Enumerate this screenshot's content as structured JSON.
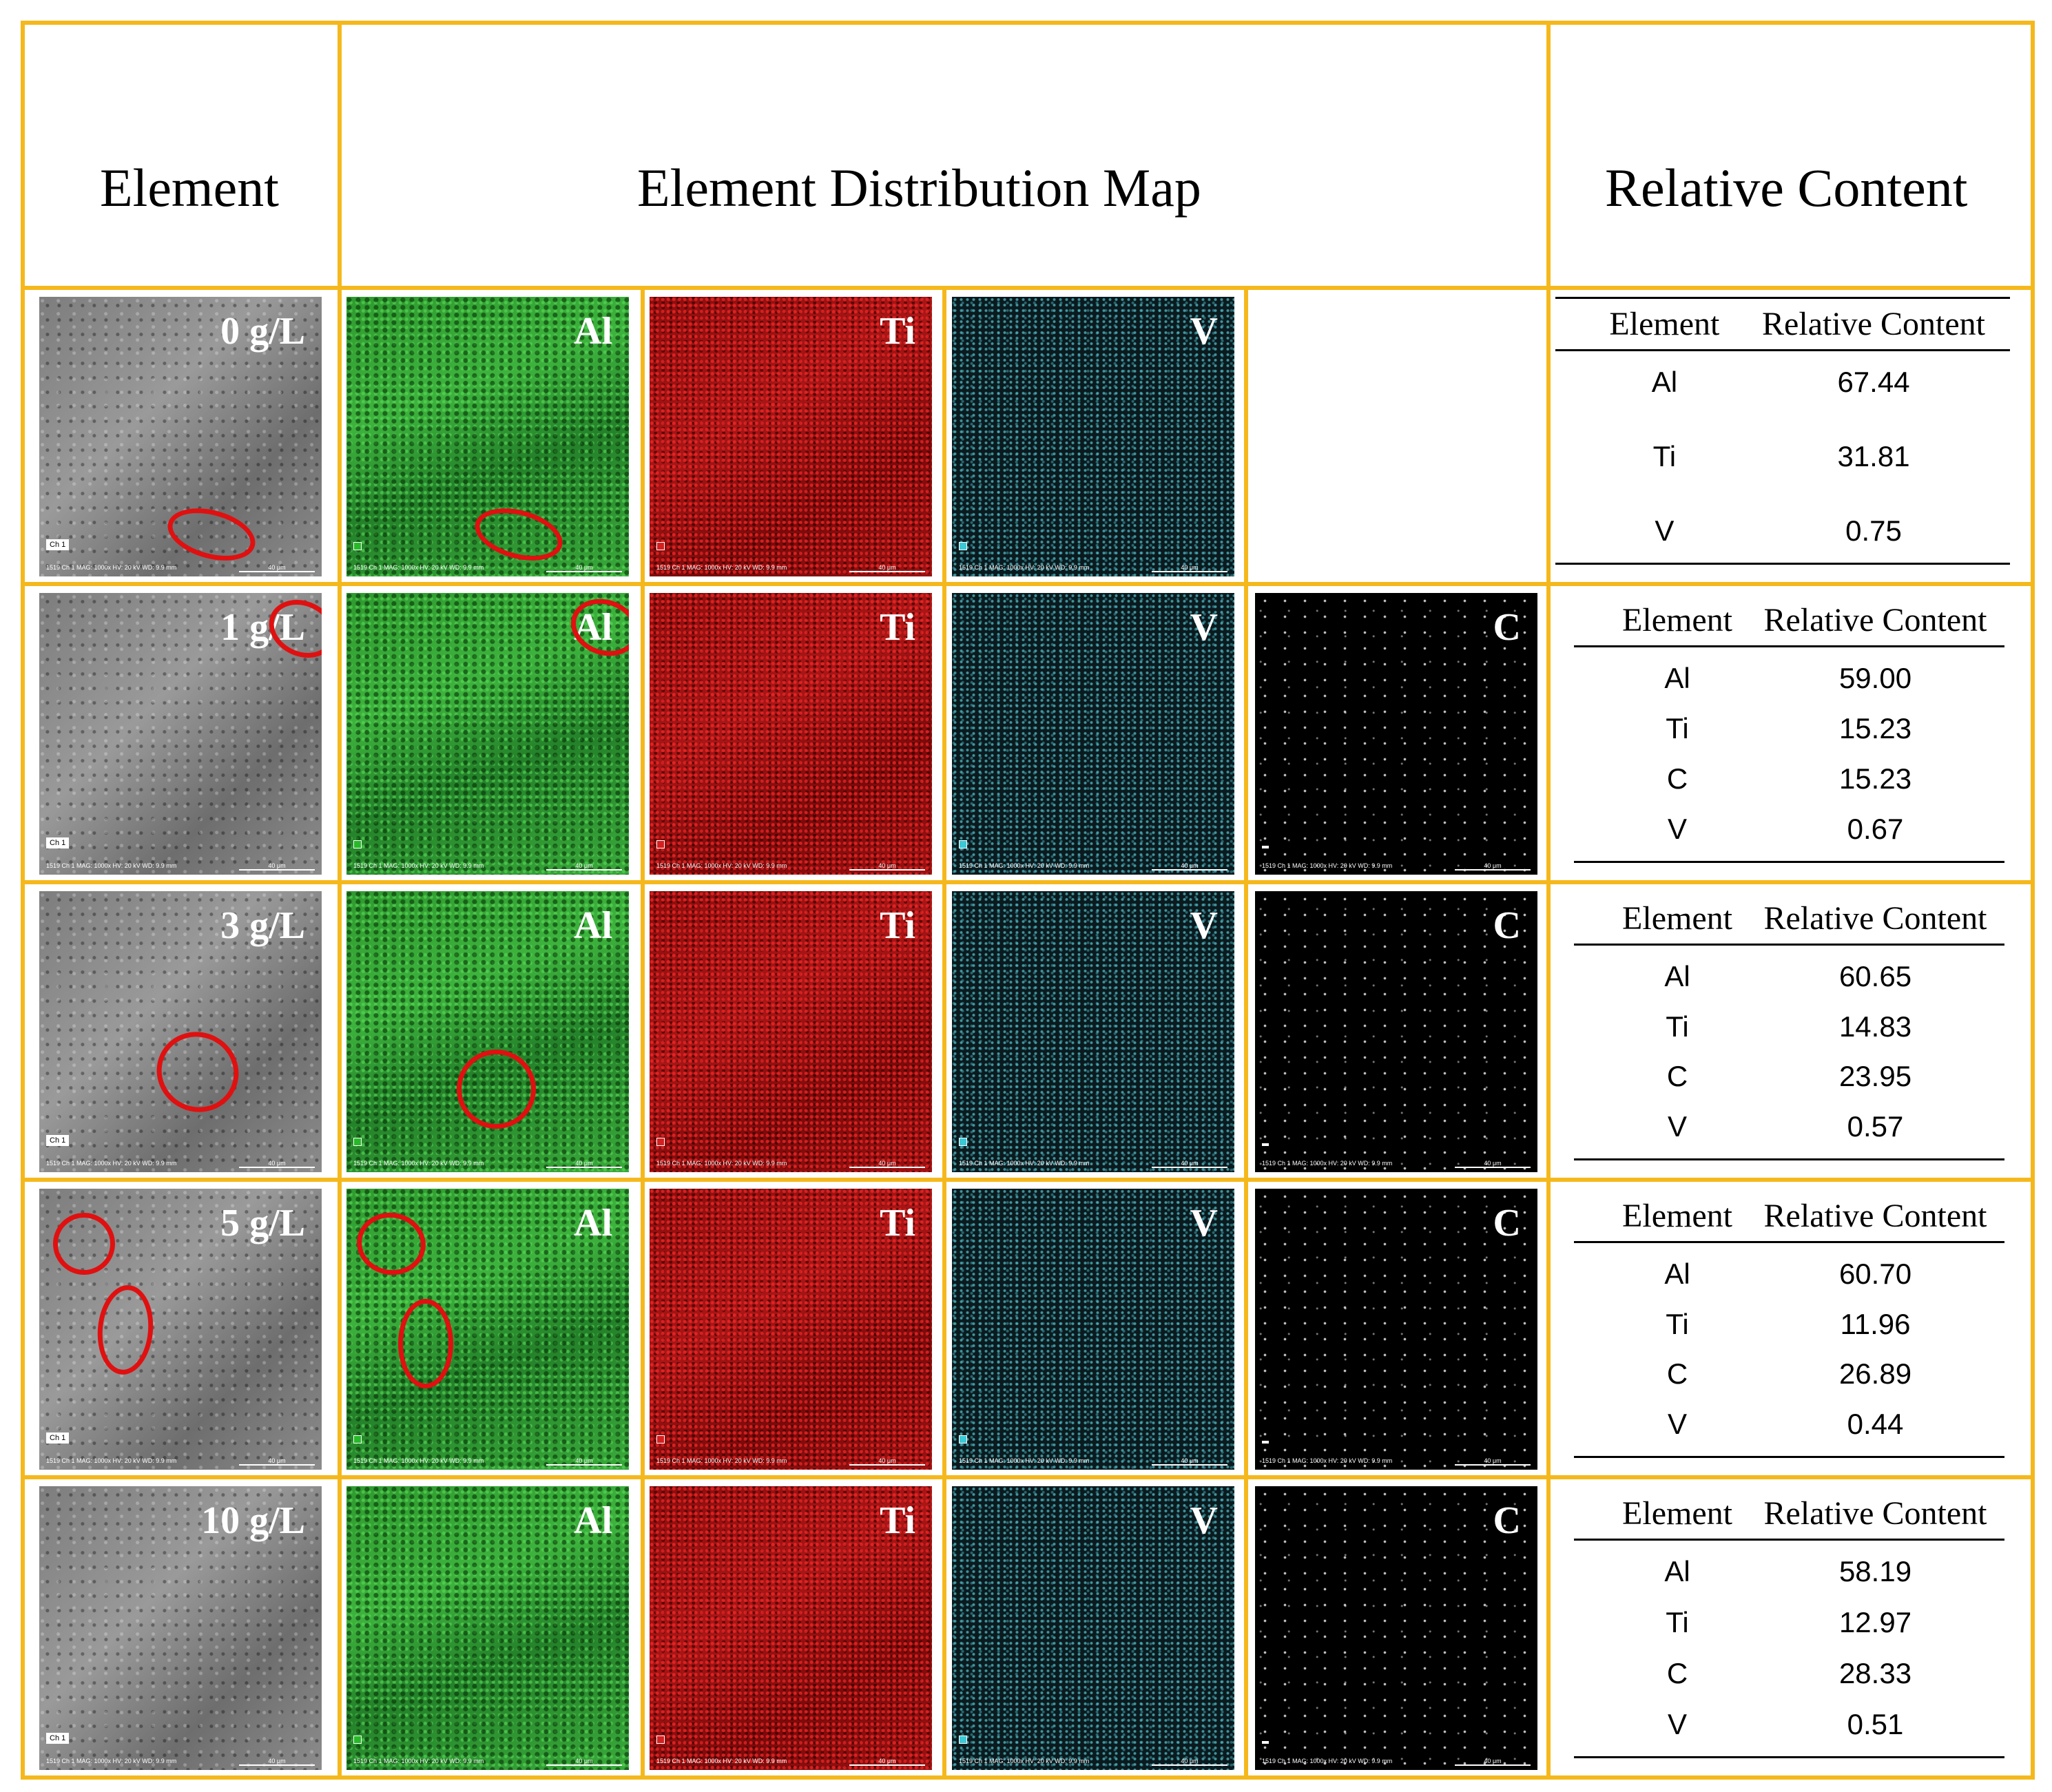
{
  "headers": {
    "element": "Element",
    "map": "Element  Distribution Map",
    "content": "Relative Content"
  },
  "colors": {
    "frame": "#f5b81c",
    "al_map": "#35a835",
    "ti_map": "#9a1212",
    "v_map": "#4fbfcc",
    "c_map": "#000000",
    "annotation": "#e01010"
  },
  "rows": [
    {
      "sample": "0 g/L",
      "maps": [
        "Al",
        "Ti",
        "V"
      ],
      "table": {
        "col_element": "Element",
        "col_content": "Relative Content",
        "entries": [
          {
            "element": "Al",
            "value": "67.44"
          },
          {
            "element": "Ti",
            "value": "31.81"
          },
          {
            "element": "V",
            "value": "0.75"
          }
        ]
      }
    },
    {
      "sample": "1 g/L",
      "maps": [
        "Al",
        "Ti",
        "V",
        "C"
      ],
      "table": {
        "col_element": "Element",
        "col_content": "Relative Content",
        "entries": [
          {
            "element": "Al",
            "value": "59.00"
          },
          {
            "element": "Ti",
            "value": "15.23"
          },
          {
            "element": "C",
            "value": "15.23"
          },
          {
            "element": "V",
            "value": "0.67"
          }
        ]
      }
    },
    {
      "sample": "3 g/L",
      "maps": [
        "Al",
        "Ti",
        "V",
        "C"
      ],
      "table": {
        "col_element": "Element",
        "col_content": "Relative Content",
        "entries": [
          {
            "element": "Al",
            "value": "60.65"
          },
          {
            "element": "Ti",
            "value": "14.83"
          },
          {
            "element": "C",
            "value": "23.95"
          },
          {
            "element": "V",
            "value": "0.57"
          }
        ]
      }
    },
    {
      "sample": "5 g/L",
      "maps": [
        "Al",
        "Ti",
        "V",
        "C"
      ],
      "table": {
        "col_element": "Element",
        "col_content": "Relative Content",
        "entries": [
          {
            "element": "Al",
            "value": "60.70"
          },
          {
            "element": "Ti",
            "value": "11.96"
          },
          {
            "element": "C",
            "value": "26.89"
          },
          {
            "element": "V",
            "value": "0.44"
          }
        ]
      }
    },
    {
      "sample": "10 g/L",
      "maps": [
        "Al",
        "Ti",
        "V",
        "C"
      ],
      "table": {
        "col_element": "Element",
        "col_content": "Relative Content",
        "entries": [
          {
            "element": "Al",
            "value": "58.19"
          },
          {
            "element": "Ti",
            "value": "12.97"
          },
          {
            "element": "C",
            "value": "28.33"
          },
          {
            "element": "V",
            "value": "0.51"
          }
        ]
      }
    }
  ],
  "micrograph_footer": {
    "sem_tag": "Ch 1",
    "id": "1519",
    "meta": "Ch 1   MAG: 1000x   HV: 20 kV   WD: 9.9 mm",
    "scale": "40 μm"
  }
}
